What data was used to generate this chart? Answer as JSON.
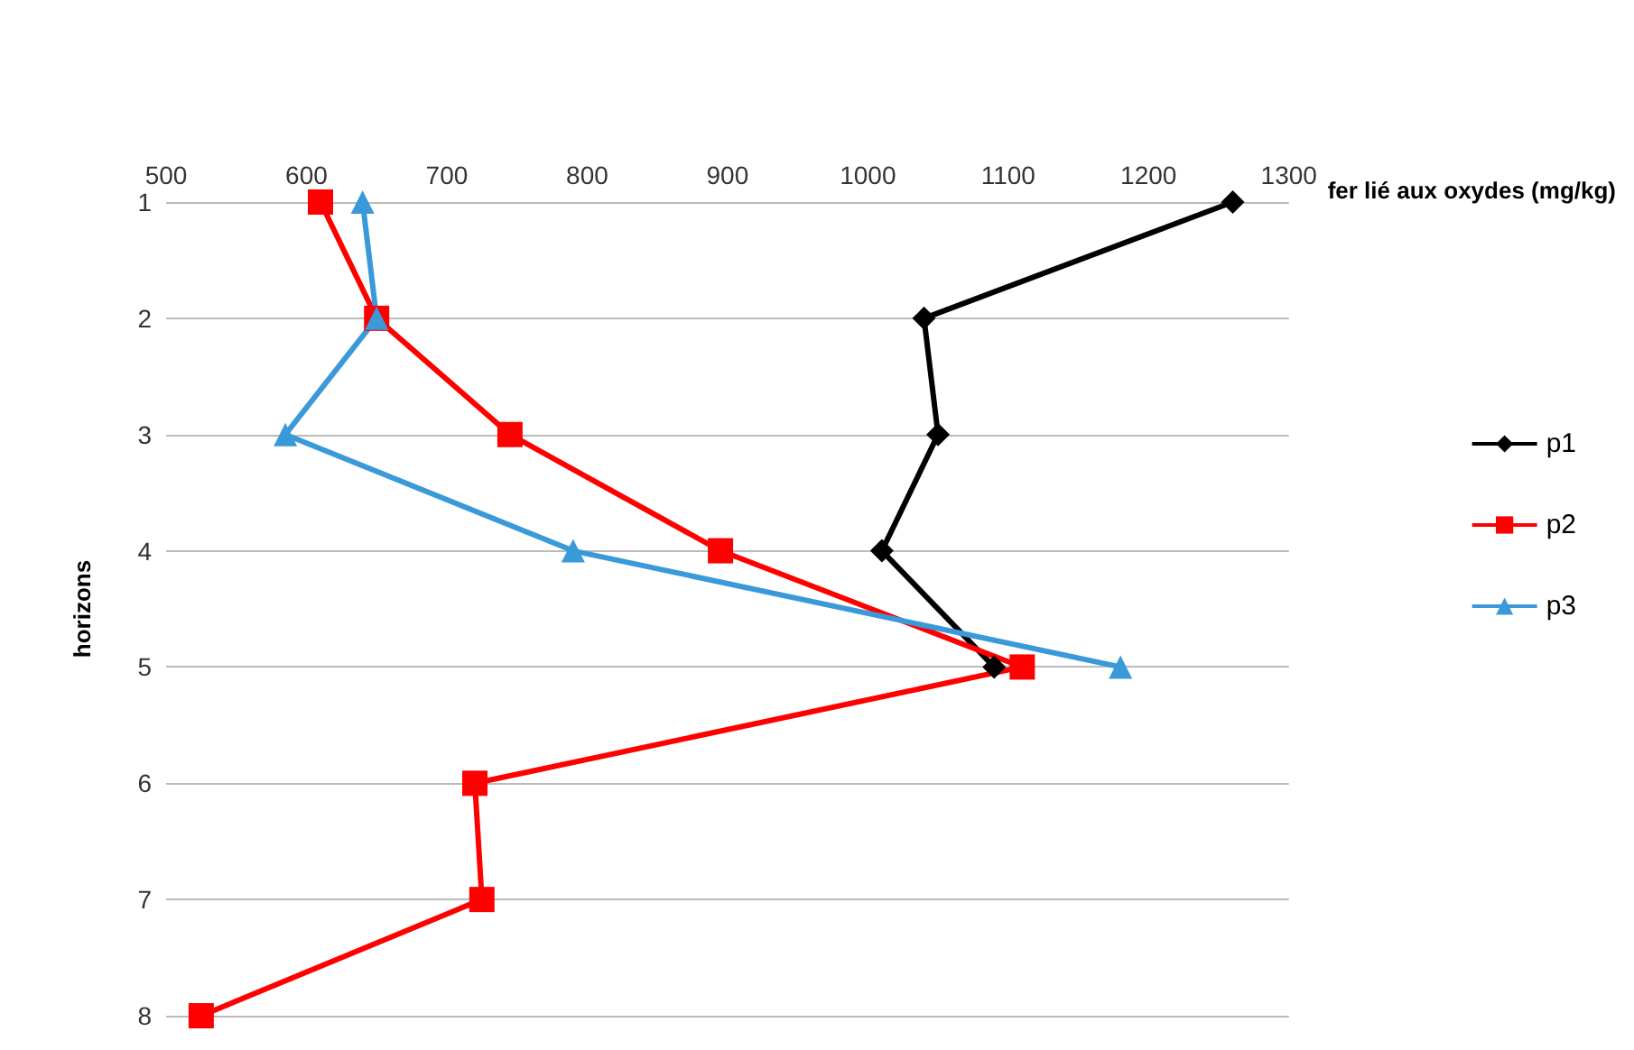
{
  "chart_data": {
    "type": "line",
    "orientation": "horizontal",
    "xlabel": "fer lié aux oxydes (mg/kg)",
    "ylabel": "horizons",
    "categories": [
      "1",
      "2",
      "3",
      "4",
      "5",
      "6",
      "7",
      "8"
    ],
    "xlim": [
      500,
      1300
    ],
    "xticks": [
      500,
      600,
      700,
      800,
      900,
      1000,
      1100,
      1200,
      1300
    ],
    "grid": "y",
    "legend": "right",
    "series": [
      {
        "name": "p1",
        "color": "#000000",
        "marker": "diamond",
        "values": [
          1260,
          1040,
          1050,
          1010,
          1090,
          null,
          null,
          null
        ]
      },
      {
        "name": "p2",
        "color": "#ff0000",
        "marker": "square",
        "values": [
          610,
          650,
          745,
          895,
          1110,
          720,
          725,
          525
        ]
      },
      {
        "name": "p3",
        "color": "#3a9ad9",
        "marker": "triangle",
        "values": [
          640,
          650,
          585,
          790,
          1180,
          null,
          null,
          null
        ]
      }
    ]
  }
}
